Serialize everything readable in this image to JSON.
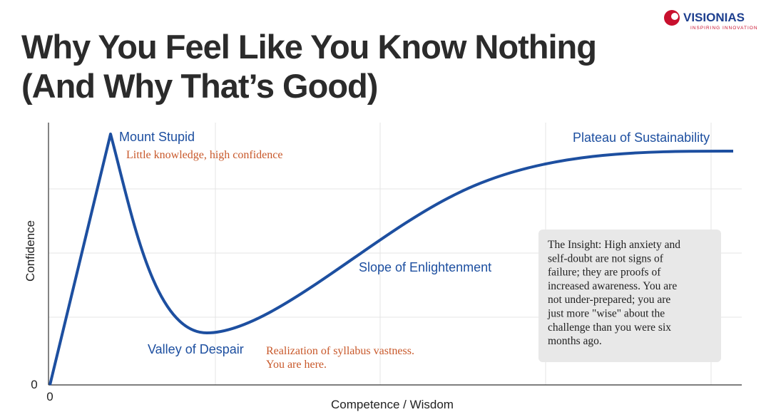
{
  "header": {
    "title_lines": [
      "Why You Feel Like You Know Nothing",
      "(And Why That’s Good)"
    ]
  },
  "logo": {
    "name": "VISIONIAS",
    "tagline": "INSPIRING INNOVATION"
  },
  "axes": {
    "y_label": "Confidence",
    "x_label": "Competence / Wisdom",
    "y_origin": "0",
    "x_origin": "0"
  },
  "annotations": {
    "peak": "Mount Stupid",
    "peak_note": "Little knowledge, high confidence",
    "plateau": "Plateau of Sustainability",
    "slope": "Slope of Enlightenment",
    "valley": "Valley of Despair",
    "valley_note_lines": [
      "Realization of syllabus vastness.",
      "You are here."
    ]
  },
  "insight": {
    "lines": [
      "The Insight: High anxiety and",
      "self-doubt are not signs of",
      "failure; they are proofs of",
      "increased awareness. You are",
      "not under-prepared; you are",
      "just more \"wise\" about the",
      "challenge than you were six",
      "months ago."
    ]
  }
}
